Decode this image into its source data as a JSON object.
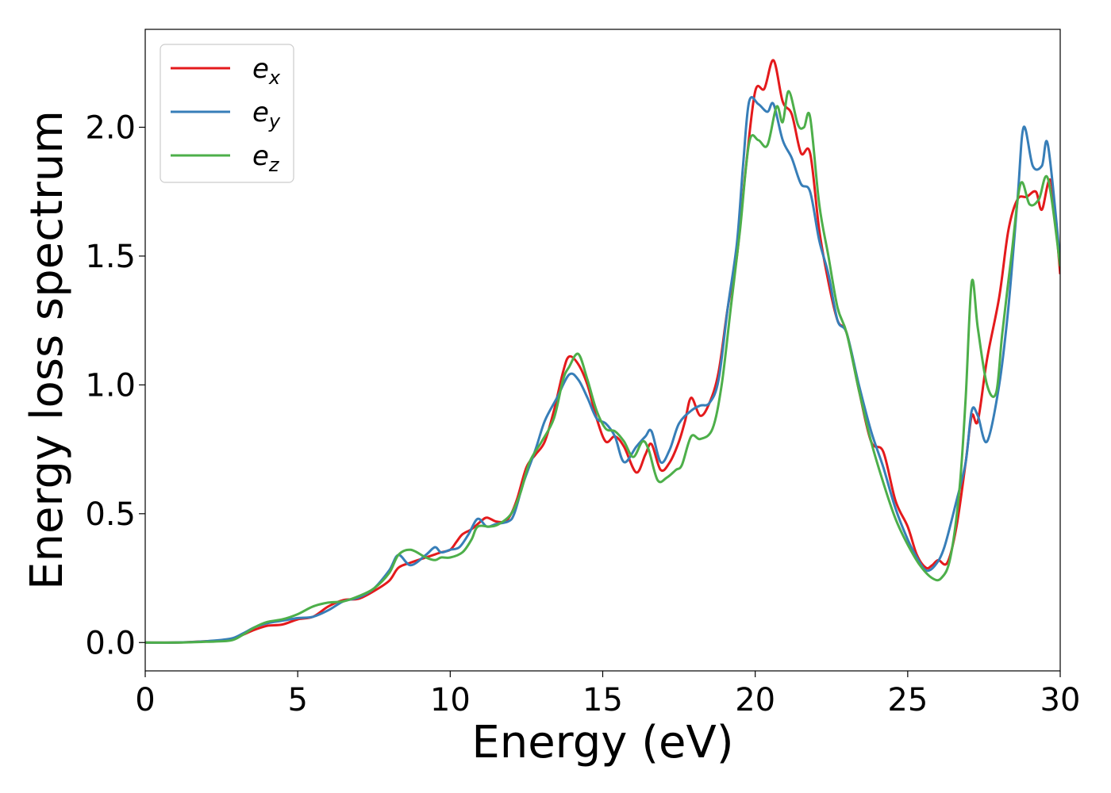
{
  "chart_data": {
    "type": "line",
    "title": "",
    "xlabel": "Energy (eV)",
    "ylabel": "Energy loss spectrum",
    "xlim": [
      0,
      30
    ],
    "ylim": [
      -0.11,
      2.38
    ],
    "xticks": [
      0,
      5,
      10,
      15,
      20,
      25,
      30
    ],
    "xtick_labels": [
      "0",
      "5",
      "10",
      "15",
      "20",
      "25",
      "30"
    ],
    "yticks": [
      0.0,
      0.5,
      1.0,
      1.5,
      2.0
    ],
    "ytick_labels": [
      "0.0",
      "0.5",
      "1.0",
      "1.5",
      "2.0"
    ],
    "grid": false,
    "legend_position": "top-left",
    "series": [
      {
        "name": "x",
        "color": "#e41a1c",
        "points": [
          [
            0,
            0
          ],
          [
            1,
            0
          ],
          [
            2,
            0.005
          ],
          [
            2.8,
            0.01
          ],
          [
            3.2,
            0.03
          ],
          [
            3.6,
            0.05
          ],
          [
            4,
            0.065
          ],
          [
            4.5,
            0.07
          ],
          [
            5,
            0.09
          ],
          [
            5.5,
            0.1
          ],
          [
            6,
            0.14
          ],
          [
            6.5,
            0.165
          ],
          [
            7,
            0.17
          ],
          [
            7.5,
            0.2
          ],
          [
            8,
            0.24
          ],
          [
            8.3,
            0.29
          ],
          [
            8.7,
            0.31
          ],
          [
            9.2,
            0.33
          ],
          [
            9.7,
            0.35
          ],
          [
            10,
            0.36
          ],
          [
            10.2,
            0.39
          ],
          [
            10.4,
            0.42
          ],
          [
            10.7,
            0.44
          ],
          [
            11,
            0.47
          ],
          [
            11.2,
            0.485
          ],
          [
            11.5,
            0.47
          ],
          [
            11.8,
            0.47
          ],
          [
            12,
            0.5
          ],
          [
            12.2,
            0.56
          ],
          [
            12.5,
            0.68
          ],
          [
            12.8,
            0.73
          ],
          [
            13.1,
            0.78
          ],
          [
            13.4,
            0.9
          ],
          [
            13.7,
            1.05
          ],
          [
            13.9,
            1.11
          ],
          [
            14.2,
            1.08
          ],
          [
            14.5,
            1.0
          ],
          [
            14.8,
            0.87
          ],
          [
            15.1,
            0.78
          ],
          [
            15.4,
            0.8
          ],
          [
            15.7,
            0.76
          ],
          [
            16.1,
            0.66
          ],
          [
            16.4,
            0.73
          ],
          [
            16.6,
            0.77
          ],
          [
            16.9,
            0.67
          ],
          [
            17.2,
            0.7
          ],
          [
            17.5,
            0.78
          ],
          [
            17.7,
            0.86
          ],
          [
            17.9,
            0.95
          ],
          [
            18.2,
            0.88
          ],
          [
            18.5,
            0.93
          ],
          [
            18.8,
            1.05
          ],
          [
            19.1,
            1.3
          ],
          [
            19.4,
            1.5
          ],
          [
            19.7,
            1.85
          ],
          [
            20,
            2.14
          ],
          [
            20.3,
            2.15
          ],
          [
            20.6,
            2.26
          ],
          [
            20.9,
            2.1
          ],
          [
            21.2,
            2.05
          ],
          [
            21.5,
            1.9
          ],
          [
            21.8,
            1.9
          ],
          [
            22.1,
            1.6
          ],
          [
            22.4,
            1.4
          ],
          [
            22.7,
            1.25
          ],
          [
            23,
            1.2
          ],
          [
            23.4,
            0.98
          ],
          [
            23.8,
            0.78
          ],
          [
            24.2,
            0.74
          ],
          [
            24.6,
            0.55
          ],
          [
            25,
            0.45
          ],
          [
            25.3,
            0.34
          ],
          [
            25.6,
            0.29
          ],
          [
            25.8,
            0.3
          ],
          [
            26,
            0.32
          ],
          [
            26.3,
            0.31
          ],
          [
            26.6,
            0.45
          ],
          [
            26.9,
            0.7
          ],
          [
            27.1,
            0.88
          ],
          [
            27.3,
            0.86
          ],
          [
            27.6,
            1.1
          ],
          [
            28,
            1.34
          ],
          [
            28.3,
            1.6
          ],
          [
            28.6,
            1.72
          ],
          [
            28.9,
            1.73
          ],
          [
            29.2,
            1.75
          ],
          [
            29.4,
            1.68
          ],
          [
            29.7,
            1.79
          ],
          [
            30,
            1.43
          ]
        ]
      },
      {
        "name": "y",
        "color": "#377eb8",
        "points": [
          [
            0,
            0
          ],
          [
            1,
            0
          ],
          [
            2,
            0.005
          ],
          [
            2.8,
            0.015
          ],
          [
            3.2,
            0.035
          ],
          [
            3.6,
            0.06
          ],
          [
            4,
            0.075
          ],
          [
            4.5,
            0.085
          ],
          [
            5,
            0.095
          ],
          [
            5.5,
            0.1
          ],
          [
            6,
            0.125
          ],
          [
            6.5,
            0.16
          ],
          [
            7,
            0.175
          ],
          [
            7.5,
            0.21
          ],
          [
            8,
            0.28
          ],
          [
            8.3,
            0.34
          ],
          [
            8.7,
            0.3
          ],
          [
            9.2,
            0.34
          ],
          [
            9.5,
            0.37
          ],
          [
            9.7,
            0.35
          ],
          [
            10,
            0.36
          ],
          [
            10.3,
            0.37
          ],
          [
            10.6,
            0.42
          ],
          [
            10.9,
            0.48
          ],
          [
            11.2,
            0.45
          ],
          [
            11.5,
            0.46
          ],
          [
            11.9,
            0.47
          ],
          [
            12.1,
            0.5
          ],
          [
            12.4,
            0.62
          ],
          [
            12.8,
            0.75
          ],
          [
            13.1,
            0.86
          ],
          [
            13.5,
            0.95
          ],
          [
            13.9,
            1.04
          ],
          [
            14.2,
            1.02
          ],
          [
            14.5,
            0.95
          ],
          [
            14.8,
            0.87
          ],
          [
            15.1,
            0.85
          ],
          [
            15.4,
            0.8
          ],
          [
            15.7,
            0.7
          ],
          [
            16.1,
            0.76
          ],
          [
            16.4,
            0.8
          ],
          [
            16.6,
            0.82
          ],
          [
            16.9,
            0.7
          ],
          [
            17.2,
            0.75
          ],
          [
            17.5,
            0.85
          ],
          [
            17.9,
            0.9
          ],
          [
            18.2,
            0.92
          ],
          [
            18.5,
            0.93
          ],
          [
            18.8,
            1.02
          ],
          [
            19.1,
            1.3
          ],
          [
            19.4,
            1.55
          ],
          [
            19.6,
            1.85
          ],
          [
            19.8,
            2.1
          ],
          [
            20.1,
            2.09
          ],
          [
            20.4,
            2.06
          ],
          [
            20.6,
            2.09
          ],
          [
            20.9,
            1.95
          ],
          [
            21.2,
            1.88
          ],
          [
            21.5,
            1.78
          ],
          [
            21.8,
            1.75
          ],
          [
            22.1,
            1.56
          ],
          [
            22.4,
            1.43
          ],
          [
            22.7,
            1.25
          ],
          [
            23,
            1.2
          ],
          [
            23.4,
            1.0
          ],
          [
            23.8,
            0.82
          ],
          [
            24.2,
            0.68
          ],
          [
            24.6,
            0.52
          ],
          [
            25,
            0.4
          ],
          [
            25.3,
            0.33
          ],
          [
            25.6,
            0.28
          ],
          [
            25.9,
            0.3
          ],
          [
            26.2,
            0.37
          ],
          [
            26.6,
            0.55
          ],
          [
            26.9,
            0.7
          ],
          [
            27.1,
            0.9
          ],
          [
            27.3,
            0.88
          ],
          [
            27.6,
            0.78
          ],
          [
            28,
            1.0
          ],
          [
            28.3,
            1.3
          ],
          [
            28.6,
            1.72
          ],
          [
            28.8,
            2.0
          ],
          [
            29.1,
            1.85
          ],
          [
            29.4,
            1.85
          ],
          [
            29.6,
            1.93
          ],
          [
            30,
            1.48
          ]
        ]
      },
      {
        "name": "z",
        "color": "#4daf4a",
        "points": [
          [
            0,
            0
          ],
          [
            1,
            0
          ],
          [
            2,
            0.003
          ],
          [
            2.8,
            0.008
          ],
          [
            3.2,
            0.03
          ],
          [
            3.6,
            0.06
          ],
          [
            4,
            0.08
          ],
          [
            4.5,
            0.09
          ],
          [
            5,
            0.11
          ],
          [
            5.5,
            0.14
          ],
          [
            6,
            0.155
          ],
          [
            6.5,
            0.16
          ],
          [
            7,
            0.18
          ],
          [
            7.5,
            0.21
          ],
          [
            8,
            0.27
          ],
          [
            8.3,
            0.34
          ],
          [
            8.7,
            0.36
          ],
          [
            9.2,
            0.33
          ],
          [
            9.5,
            0.32
          ],
          [
            9.7,
            0.33
          ],
          [
            10,
            0.33
          ],
          [
            10.4,
            0.35
          ],
          [
            10.7,
            0.4
          ],
          [
            10.9,
            0.45
          ],
          [
            11.3,
            0.45
          ],
          [
            11.6,
            0.46
          ],
          [
            12,
            0.5
          ],
          [
            12.3,
            0.58
          ],
          [
            12.6,
            0.7
          ],
          [
            13,
            0.78
          ],
          [
            13.4,
            0.87
          ],
          [
            13.7,
            1.02
          ],
          [
            13.9,
            1.07
          ],
          [
            14.2,
            1.12
          ],
          [
            14.5,
            1.02
          ],
          [
            14.8,
            0.9
          ],
          [
            15.1,
            0.83
          ],
          [
            15.4,
            0.82
          ],
          [
            15.7,
            0.78
          ],
          [
            16,
            0.72
          ],
          [
            16.3,
            0.78
          ],
          [
            16.5,
            0.75
          ],
          [
            16.8,
            0.63
          ],
          [
            17.1,
            0.64
          ],
          [
            17.4,
            0.67
          ],
          [
            17.6,
            0.69
          ],
          [
            17.9,
            0.8
          ],
          [
            18.2,
            0.79
          ],
          [
            18.6,
            0.83
          ],
          [
            18.9,
            1.0
          ],
          [
            19.2,
            1.3
          ],
          [
            19.5,
            1.6
          ],
          [
            19.8,
            1.94
          ],
          [
            20.1,
            1.95
          ],
          [
            20.4,
            1.93
          ],
          [
            20.7,
            2.08
          ],
          [
            20.9,
            2.02
          ],
          [
            21.1,
            2.14
          ],
          [
            21.4,
            2.01
          ],
          [
            21.6,
            2.0
          ],
          [
            21.8,
            2.04
          ],
          [
            22.1,
            1.7
          ],
          [
            22.4,
            1.5
          ],
          [
            22.7,
            1.3
          ],
          [
            23,
            1.2
          ],
          [
            23.4,
            0.98
          ],
          [
            23.8,
            0.78
          ],
          [
            24.2,
            0.62
          ],
          [
            24.6,
            0.48
          ],
          [
            25,
            0.38
          ],
          [
            25.4,
            0.3
          ],
          [
            25.8,
            0.25
          ],
          [
            26.1,
            0.25
          ],
          [
            26.4,
            0.33
          ],
          [
            26.7,
            0.6
          ],
          [
            26.9,
            0.95
          ],
          [
            27.1,
            1.4
          ],
          [
            27.3,
            1.22
          ],
          [
            27.6,
            1.0
          ],
          [
            27.9,
            0.97
          ],
          [
            28.1,
            1.2
          ],
          [
            28.4,
            1.5
          ],
          [
            28.7,
            1.78
          ],
          [
            29,
            1.7
          ],
          [
            29.3,
            1.72
          ],
          [
            29.6,
            1.8
          ],
          [
            30,
            1.46
          ]
        ]
      }
    ]
  }
}
